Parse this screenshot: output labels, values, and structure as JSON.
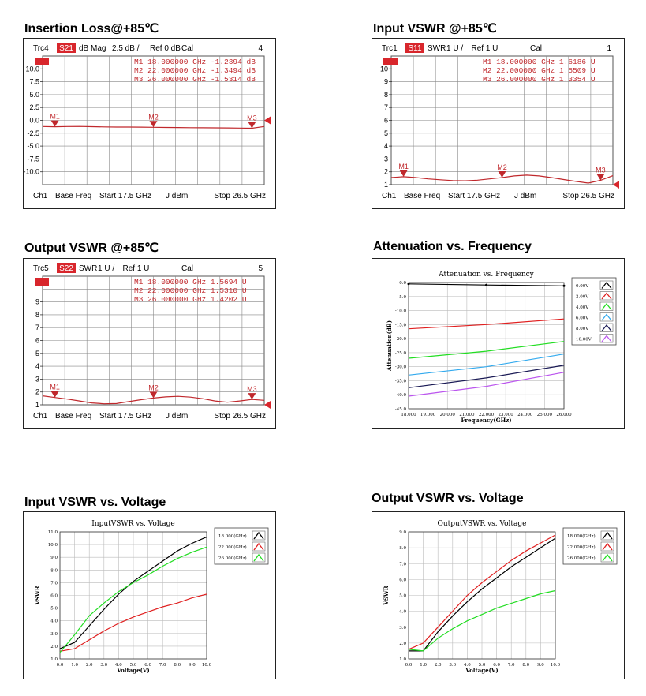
{
  "panels": [
    {
      "heading": "Insertion Loss@+85℃",
      "kind": "vna",
      "chart_data": {
        "type": "line",
        "header": {
          "trace": "Trc4",
          "param": "S21",
          "format": "dB Mag",
          "scale": "2.5 dB /",
          "ref": "Ref 0 dB",
          "cal": "Cal",
          "num": "4"
        },
        "footer": {
          "ch": "Ch1",
          "base": "Base Freq",
          "start": "Start  17.5 GHz",
          "power": "J dBm",
          "stop": "Stop  26.5 GHz"
        },
        "ylim": [
          -12.5,
          12.5
        ],
        "ytick_labels": [
          "10.0",
          "7.5",
          "5.0",
          "2.5",
          "0.0",
          "-2.5",
          "-5.0",
          "-7.5",
          "-10.0"
        ],
        "ytick_values": [
          10,
          7.5,
          5,
          2.5,
          0,
          -2.5,
          -5,
          -7.5,
          -10
        ],
        "xlim": [
          17.5,
          26.5
        ],
        "ref_value": 0,
        "x": [
          17.5,
          18,
          18.5,
          19,
          19.5,
          20,
          20.5,
          21,
          21.5,
          22,
          22.5,
          23,
          23.5,
          24,
          24.5,
          25,
          25.5,
          26,
          26.5
        ],
        "y": [
          -1.2,
          -1.24,
          -1.2,
          -1.18,
          -1.22,
          -1.28,
          -1.3,
          -1.3,
          -1.32,
          -1.35,
          -1.38,
          -1.4,
          -1.42,
          -1.44,
          -1.46,
          -1.48,
          -1.5,
          -1.53,
          -1.2
        ],
        "markers": [
          {
            "label": "M1",
            "x": 18,
            "y": -1.2394,
            "text": "M1  18.000000 GHz  -1.2394 dB"
          },
          {
            "label": "M2",
            "x": 22,
            "y": -1.3494,
            "text": "M2  22.000000 GHz  -1.3494 dB"
          },
          {
            "label": "M3",
            "x": 26,
            "y": -1.5314,
            "text": "M3  26.000000 GHz  -1.5314 dB"
          }
        ]
      }
    },
    {
      "heading": "Input VSWR @+85℃",
      "kind": "vna",
      "chart_data": {
        "type": "line",
        "header": {
          "trace": "Trc1",
          "param": "S11",
          "format": "SWR",
          "scale": "1 U /",
          "ref": "Ref 1 U",
          "cal": "Cal",
          "num": "1"
        },
        "footer": {
          "ch": "Ch1",
          "base": "Base Freq",
          "start": "Start  17.5 GHz",
          "power": "J dBm",
          "stop": "Stop  26.5 GHz"
        },
        "ylim": [
          1,
          11
        ],
        "ytick_labels": [
          "10",
          "9",
          "8",
          "7",
          "6",
          "5",
          "4",
          "3",
          "2",
          "1"
        ],
        "ytick_values": [
          10,
          9,
          8,
          7,
          6,
          5,
          4,
          3,
          2,
          1
        ],
        "xlim": [
          17.5,
          26.5
        ],
        "ref_value": 1,
        "x": [
          17.5,
          18,
          18.5,
          19,
          19.5,
          20,
          20.5,
          21,
          21.5,
          22,
          22.5,
          23,
          23.5,
          24,
          24.5,
          25,
          25.5,
          26,
          26.5
        ],
        "y": [
          1.55,
          1.62,
          1.55,
          1.45,
          1.38,
          1.32,
          1.3,
          1.35,
          1.45,
          1.55,
          1.68,
          1.74,
          1.68,
          1.55,
          1.4,
          1.25,
          1.12,
          1.34,
          1.7
        ],
        "markers": [
          {
            "label": "M1",
            "x": 18,
            "y": 1.6186,
            "text": "M1  18.000000 GHz   1.6186 U"
          },
          {
            "label": "M2",
            "x": 22,
            "y": 1.5509,
            "text": "M2  22.000000 GHz   1.5509 U"
          },
          {
            "label": "M3",
            "x": 26,
            "y": 1.3354,
            "text": "M3  26.000000 GHz   1.3354 U"
          }
        ]
      }
    },
    {
      "heading": "Output VSWR @+85℃",
      "kind": "vna",
      "chart_data": {
        "type": "line",
        "header": {
          "trace": "Trc5",
          "param": "S22",
          "format": "SWR",
          "scale": "1 U /",
          "ref": "Ref 1 U",
          "cal": "Cal",
          "num": "5"
        },
        "footer": {
          "ch": "Ch1",
          "base": "Base Freq",
          "start": "Start  17.5 GHz",
          "power": "J dBm",
          "stop": "Stop  26.5 GHz"
        },
        "ylim": [
          1,
          11
        ],
        "ytick_labels": [
          "9",
          "8",
          "7",
          "6",
          "5",
          "4",
          "3",
          "2",
          "1"
        ],
        "ytick_values": [
          9,
          8,
          7,
          6,
          5,
          4,
          3,
          2,
          1
        ],
        "xlim": [
          17.5,
          26.5
        ],
        "ref_value": 1,
        "x": [
          17.5,
          18,
          18.5,
          19,
          19.5,
          20,
          20.5,
          21,
          21.5,
          22,
          22.5,
          23,
          23.5,
          24,
          24.5,
          25,
          25.5,
          26,
          26.5
        ],
        "y": [
          1.7,
          1.57,
          1.45,
          1.3,
          1.15,
          1.08,
          1.1,
          1.25,
          1.4,
          1.53,
          1.62,
          1.66,
          1.6,
          1.48,
          1.3,
          1.2,
          1.3,
          1.42,
          1.35
        ],
        "markers": [
          {
            "label": "M1",
            "x": 18,
            "y": 1.5694,
            "text": "M1  18.000000 GHz   1.5694 U"
          },
          {
            "label": "M2",
            "x": 22,
            "y": 1.531,
            "text": "M2  22.000000 GHz   1.5310 U"
          },
          {
            "label": "M3",
            "x": 26,
            "y": 1.4202,
            "text": "M3  26.000000 GHz   1.4202 U"
          }
        ]
      }
    },
    {
      "heading": "Attenuation vs. Frequency",
      "kind": "xy",
      "chart_data": {
        "type": "line",
        "title": "Attenuation vs. Frequency",
        "xlabel": "Frequency(GHz)",
        "ylabel": "Attenuation(dB)",
        "xlim": [
          18,
          26
        ],
        "ylim": [
          -45,
          0
        ],
        "xticks": [
          18,
          19,
          20,
          21,
          22,
          23,
          24,
          25,
          26
        ],
        "xtick_labels": [
          "18.000",
          "19.000",
          "20.000",
          "21.000",
          "22.000",
          "23.000",
          "24.000",
          "25.000",
          "26.000"
        ],
        "yticks": [
          0,
          -5,
          -10,
          -15,
          -20,
          -25,
          -30,
          -35,
          -40,
          -45
        ],
        "ytick_labels": [
          "0.0",
          "-5.0",
          "-10.0",
          "-15.0",
          "-20.0",
          "-25.0",
          "-30.0",
          "-35.0",
          "-40.0",
          "-45.0"
        ],
        "grid": true,
        "legend": "top-right",
        "series": [
          {
            "name": "0.00V",
            "color": "#000000",
            "x": [
              18,
              22,
              26
            ],
            "y": [
              -0.5,
              -0.9,
              -1.2
            ],
            "point_markers": true
          },
          {
            "name": "2.00V",
            "color": "#e02020",
            "x": [
              18,
              22,
              26
            ],
            "y": [
              -16.5,
              -15,
              -13
            ]
          },
          {
            "name": "4.00V",
            "color": "#22dd22",
            "x": [
              18,
              22,
              26
            ],
            "y": [
              -27,
              -24.5,
              -21
            ]
          },
          {
            "name": "6.00V",
            "color": "#33aaee",
            "x": [
              18,
              22,
              26
            ],
            "y": [
              -33,
              -30,
              -25.5
            ]
          },
          {
            "name": "8.00V",
            "color": "#1a1a55",
            "x": [
              18,
              22,
              26
            ],
            "y": [
              -37.5,
              -34,
              -29.5
            ]
          },
          {
            "name": "10.00V",
            "color": "#bb55ee",
            "x": [
              18,
              22,
              26
            ],
            "y": [
              -40.5,
              -37,
              -32
            ]
          }
        ]
      }
    },
    {
      "heading": "Input VSWR vs. Voltage",
      "kind": "xy",
      "chart_data": {
        "type": "line",
        "title": "InputVSWR vs. Voltage",
        "xlabel": "Voltage(V)",
        "ylabel": "VSWR",
        "xlim": [
          0,
          10
        ],
        "ylim": [
          1,
          11
        ],
        "xticks": [
          0,
          1,
          2,
          3,
          4,
          5,
          6,
          7,
          8,
          9,
          10
        ],
        "xtick_labels": [
          "0.0",
          "1.0",
          "2.0",
          "3.0",
          "4.0",
          "5.0",
          "6.0",
          "7.0",
          "8.0",
          "9.0",
          "10.0"
        ],
        "yticks": [
          1,
          2,
          3,
          4,
          5,
          6,
          7,
          8,
          9,
          10,
          11
        ],
        "ytick_labels": [
          "1.0",
          "2.0",
          "3.0",
          "4.0",
          "5.0",
          "6.0",
          "7.0",
          "8.0",
          "9.0",
          "10.0",
          "11.0"
        ],
        "grid": true,
        "legend": "top-right",
        "series": [
          {
            "name": "18.000(GHz)",
            "color": "#000000",
            "x": [
              0,
              1,
              2,
              3,
              4,
              5,
              6,
              7,
              8,
              9,
              10
            ],
            "y": [
              1.8,
              2.3,
              3.6,
              4.9,
              6.1,
              7.1,
              7.9,
              8.7,
              9.5,
              10.1,
              10.6
            ]
          },
          {
            "name": "22.000(GHz)",
            "color": "#e02020",
            "x": [
              0,
              1,
              2,
              3,
              4,
              5,
              6,
              7,
              8,
              9,
              10
            ],
            "y": [
              1.6,
              1.8,
              2.5,
              3.2,
              3.8,
              4.3,
              4.7,
              5.1,
              5.4,
              5.8,
              6.1
            ]
          },
          {
            "name": "26.000(GHz)",
            "color": "#22dd22",
            "x": [
              0,
              1,
              2,
              3,
              4,
              5,
              6,
              7,
              8,
              9,
              10
            ],
            "y": [
              1.5,
              2.9,
              4.4,
              5.4,
              6.3,
              7.0,
              7.6,
              8.3,
              8.9,
              9.4,
              9.8
            ]
          }
        ]
      }
    },
    {
      "heading": "Output VSWR vs. Voltage",
      "kind": "xy",
      "chart_data": {
        "type": "line",
        "title": "OutputVSWR vs. Voltage",
        "xlabel": "Voltage(V)",
        "ylabel": "VSWR",
        "xlim": [
          0,
          10
        ],
        "ylim": [
          1,
          9
        ],
        "xticks": [
          0,
          1,
          2,
          3,
          4,
          5,
          6,
          7,
          8,
          9,
          10
        ],
        "xtick_labels": [
          "0.0",
          "1.0",
          "2.0",
          "3.0",
          "4.0",
          "5.0",
          "6.0",
          "7.0",
          "8.0",
          "9.0",
          "10.0"
        ],
        "yticks": [
          1,
          2,
          3,
          4,
          5,
          6,
          7,
          8,
          9
        ],
        "ytick_labels": [
          "1.0",
          "2.0",
          "3.0",
          "4.0",
          "5.0",
          "6.0",
          "7.0",
          "8.0",
          "9.0"
        ],
        "grid": true,
        "legend": "top-right",
        "series": [
          {
            "name": "18.000(GHz)",
            "color": "#000000",
            "x": [
              0,
              1,
              2,
              3,
              4,
              5,
              6,
              7,
              8,
              9,
              10
            ],
            "y": [
              1.5,
              1.5,
              2.7,
              3.7,
              4.6,
              5.4,
              6.1,
              6.8,
              7.4,
              8.0,
              8.6
            ]
          },
          {
            "name": "22.000(GHz)",
            "color": "#e02020",
            "x": [
              0,
              1,
              2,
              3,
              4,
              5,
              6,
              7,
              8,
              9,
              10
            ],
            "y": [
              1.6,
              2.0,
              3.0,
              4.0,
              5.0,
              5.8,
              6.5,
              7.2,
              7.8,
              8.3,
              8.8
            ]
          },
          {
            "name": "26.000(GHz)",
            "color": "#22dd22",
            "x": [
              0,
              1,
              2,
              3,
              4,
              5,
              6,
              7,
              8,
              9,
              10
            ],
            "y": [
              1.6,
              1.5,
              2.3,
              2.9,
              3.4,
              3.8,
              4.2,
              4.5,
              4.8,
              5.1,
              5.3
            ]
          }
        ]
      }
    }
  ]
}
